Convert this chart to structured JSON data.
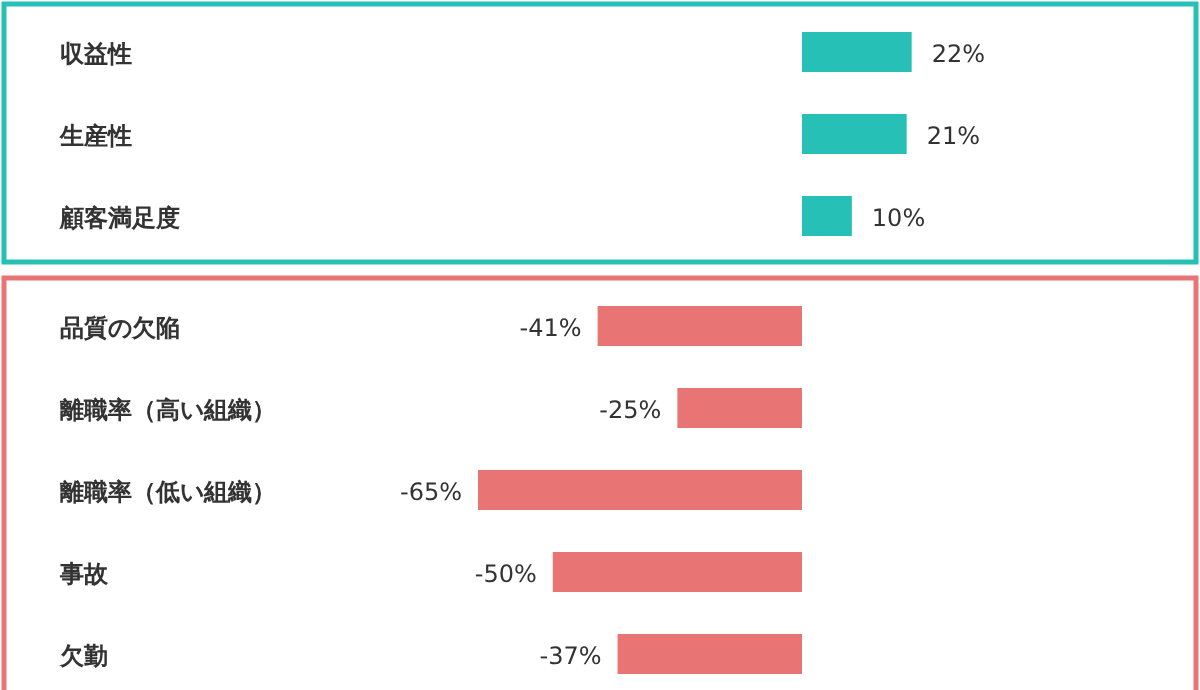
{
  "chart_data": [
    {
      "type": "bar",
      "orientation": "horizontal",
      "categories": [
        "収益性",
        "生産性",
        "顧客満足度"
      ],
      "values": [
        22,
        21,
        10
      ],
      "value_labels": [
        "22%",
        "21%",
        "10%"
      ],
      "color": "#26c0b6"
    },
    {
      "type": "bar",
      "orientation": "horizontal",
      "categories": [
        "品質の欠陥",
        "離職率（高い組織）",
        "離職率（低い組織）",
        "事故",
        "欠勤"
      ],
      "values": [
        -41,
        -25,
        -65,
        -50,
        -37
      ],
      "value_labels": [
        "-41%",
        "-25%",
        "-65%",
        "-50%",
        "-37%"
      ],
      "color": "#e87474"
    }
  ]
}
